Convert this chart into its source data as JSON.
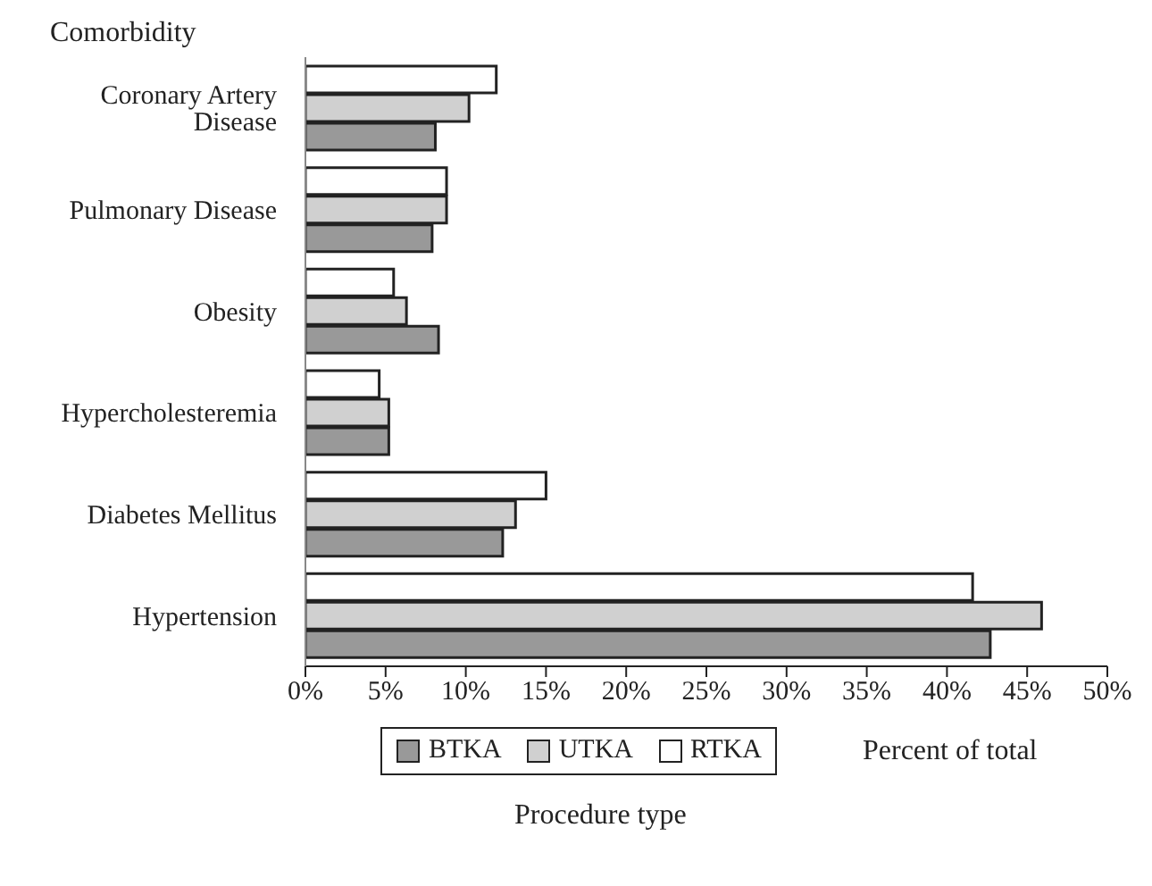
{
  "chart_data": {
    "type": "bar",
    "orientation": "horizontal",
    "ylabel": "Comorbidity",
    "xlabel": "Percent of total",
    "legend_title": "Procedure type",
    "categories": [
      "Coronary Artery Disease",
      "Pulmonary Disease",
      "Obesity",
      "Hypercholesteremia",
      "Diabetes Mellitus",
      "Hypertension"
    ],
    "series": [
      {
        "name": "BTKA",
        "color": "#999999",
        "values": [
          8.1,
          7.9,
          8.3,
          5.2,
          12.3,
          42.7
        ]
      },
      {
        "name": "UTKA",
        "color": "#d0d0d0",
        "values": [
          10.2,
          8.8,
          6.3,
          5.2,
          13.1,
          45.9
        ]
      },
      {
        "name": "RTKA",
        "color": "#ffffff",
        "values": [
          11.9,
          8.8,
          5.5,
          4.6,
          15.0,
          41.6
        ]
      }
    ],
    "xlim": [
      0,
      50
    ],
    "xticks": [
      {
        "value": 0,
        "label": "0%"
      },
      {
        "value": 5,
        "label": "5%"
      },
      {
        "value": 10,
        "label": "10%"
      },
      {
        "value": 15,
        "label": "15%"
      },
      {
        "value": 20,
        "label": "20%"
      },
      {
        "value": 25,
        "label": "25%"
      },
      {
        "value": 30,
        "label": "30%"
      },
      {
        "value": 35,
        "label": "35%"
      },
      {
        "value": 40,
        "label": "40%"
      },
      {
        "value": 45,
        "label": "45%"
      },
      {
        "value": 50,
        "label": "50%"
      }
    ],
    "grid": false,
    "legend": "bottom"
  }
}
